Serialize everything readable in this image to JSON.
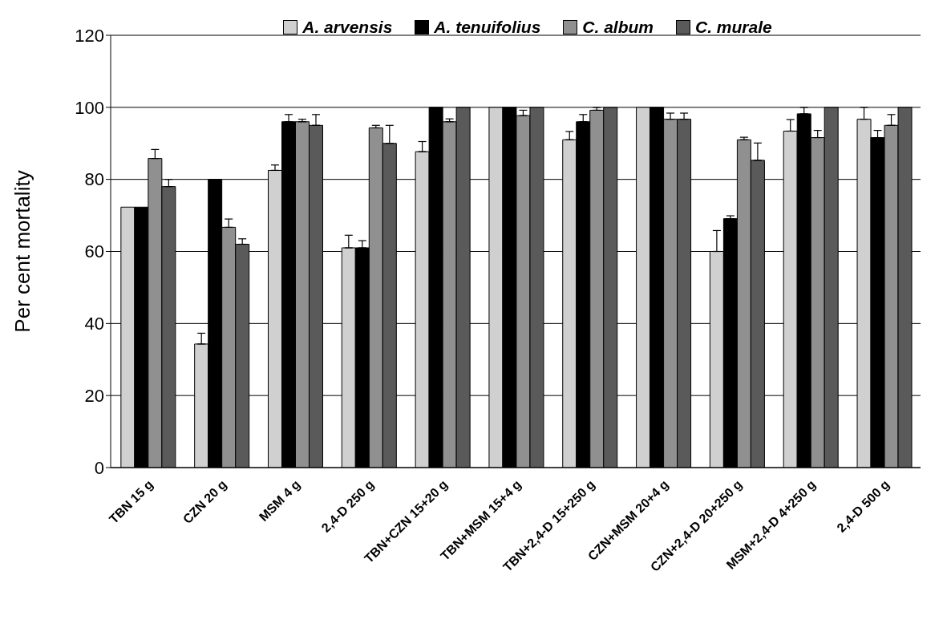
{
  "chart_data": {
    "type": "bar",
    "ylabel": "Per cent mortality",
    "categories": [
      "TBN 15 g",
      "CZN 20 g",
      "MSM 4 g",
      "2,4-D 250 g",
      "TBN+CZN 15+20 g",
      "TBN+MSM 15+4 g",
      "TBN+2,4-D 15+250 g",
      "CZN+MSM 20+4 g",
      "CZN+2,4-D 20+250 g",
      "MSM+2,4-D 4+250 g",
      "2,4-D 500 g"
    ],
    "series": [
      {
        "name": "A. arvensis",
        "color": "#d0d0d0",
        "values": [
          72.3,
          34.3,
          82.5,
          61,
          87.7,
          100,
          91,
          100,
          60,
          93.4,
          96.7
        ],
        "errors": [
          null,
          [
            34.3,
            37.3
          ],
          [
            82.5,
            84
          ],
          [
            61,
            64.5
          ],
          [
            87.7,
            90.5
          ],
          null,
          [
            91,
            93.3
          ],
          null,
          [
            60,
            65.8
          ],
          [
            93.4,
            96.6
          ],
          [
            96.7,
            100
          ]
        ]
      },
      {
        "name": "A. tenuifolius",
        "color": "#000000",
        "values": [
          72.3,
          80,
          96,
          61,
          100,
          100,
          96,
          100,
          69.1,
          98.2,
          91.6
        ],
        "errors": [
          null,
          null,
          [
            96,
            98
          ],
          [
            61,
            63
          ],
          null,
          null,
          [
            96,
            98
          ],
          null,
          [
            69.1,
            69.9
          ],
          [
            98.2,
            100
          ],
          [
            91.6,
            93.6
          ]
        ]
      },
      {
        "name": "C. album",
        "color": "#909090",
        "values": [
          85.8,
          66.7,
          96,
          94.3,
          96,
          97.7,
          99.2,
          96.7,
          91,
          91.6,
          95
        ],
        "errors": [
          [
            85.8,
            88.3
          ],
          [
            66.7,
            69
          ],
          [
            96,
            96.7
          ],
          [
            94.3,
            95
          ],
          [
            96,
            96.8
          ],
          [
            97.7,
            99.2
          ],
          [
            99.2,
            100
          ],
          [
            96.7,
            98.4
          ],
          [
            91,
            91.7
          ],
          [
            91.6,
            93.6
          ],
          [
            95,
            98
          ]
        ]
      },
      {
        "name": "C. murale",
        "color": "#5a5a5a",
        "values": [
          78,
          62,
          95,
          90,
          100,
          100,
          100,
          96.7,
          85.3,
          100,
          100
        ],
        "errors": [
          [
            78,
            80
          ],
          [
            62,
            63.5
          ],
          [
            95,
            98
          ],
          [
            90,
            95
          ],
          null,
          null,
          null,
          [
            96.7,
            98.4
          ],
          [
            85.3,
            90.1
          ],
          null,
          null
        ]
      }
    ],
    "ylim": [
      0,
      120
    ],
    "yticks": [
      0,
      20,
      40,
      60,
      80,
      100,
      120
    ],
    "grid": "y",
    "legend": "top"
  }
}
